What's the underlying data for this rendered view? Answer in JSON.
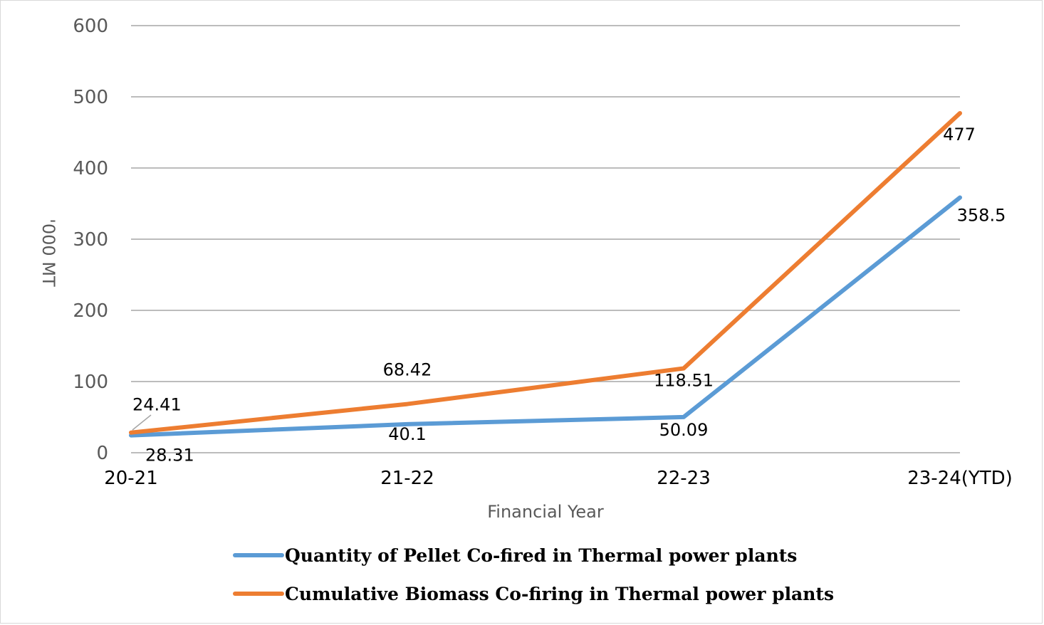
{
  "chart_data": {
    "type": "line",
    "categories": [
      "20-21",
      "21-22",
      "22-23",
      "23-24(YTD)"
    ],
    "series": [
      {
        "name": "Quantity of Pellet Co-fired in Thermal power plants",
        "values": [
          24.41,
          40.1,
          50.09,
          358.5
        ],
        "labels": [
          "24.41",
          "40.1",
          "50.09",
          "358.5"
        ],
        "color": "#5b9bd5"
      },
      {
        "name": "Cumulative Biomass Co-firing in Thermal power plants",
        "values": [
          28.31,
          68.42,
          118.51,
          477
        ],
        "labels": [
          "28.31",
          "68.42",
          "118.51",
          "477"
        ],
        "color": "#ed7d31"
      }
    ],
    "yticks": [
      "0",
      "100",
      "200",
      "300",
      "400",
      "500",
      "600"
    ],
    "ylim": [
      0,
      600
    ],
    "xlabel": "Financial Year",
    "ylabel": "'000 MT",
    "grid": true,
    "legend_position": "bottom",
    "gridline_color": "#a6a6a6"
  }
}
